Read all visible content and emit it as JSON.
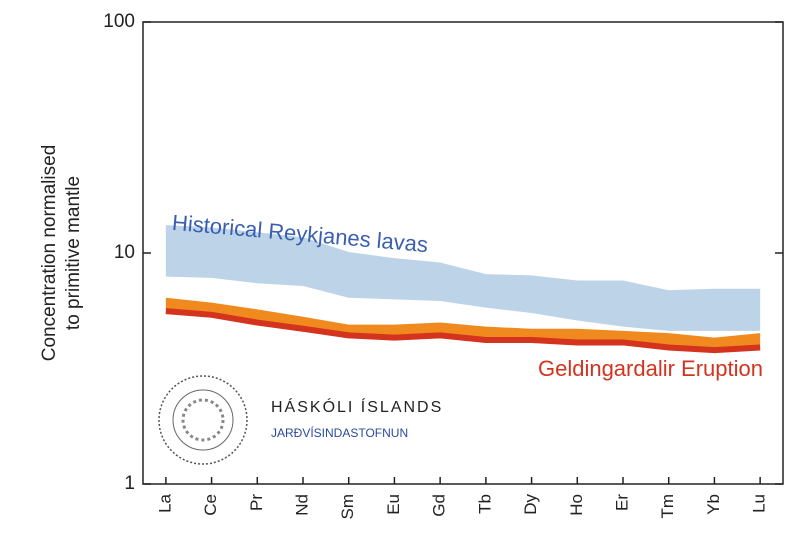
{
  "chart_data": {
    "type": "band",
    "y_label_lines": [
      "Concentration normalised",
      "to primitive mantle"
    ],
    "categories": [
      "La",
      "Ce",
      "Pr",
      "Nd",
      "Sm",
      "Eu",
      "Gd",
      "Tb",
      "Dy",
      "Ho",
      "Er",
      "Tm",
      "Yb",
      "Lu"
    ],
    "bands": [
      {
        "name": "Historical Reykjanes lavas",
        "color": "#bcd3e8",
        "label_color": "#3a5fb0",
        "upper": [
          13.2,
          12.9,
          12.3,
          11.7,
          10.1,
          9.5,
          9.1,
          8.1,
          8.0,
          7.6,
          7.6,
          6.9,
          7.0,
          7.0
        ],
        "lower": [
          7.9,
          7.8,
          7.4,
          7.2,
          6.4,
          6.3,
          6.2,
          5.8,
          5.5,
          5.1,
          4.8,
          4.6,
          4.6,
          4.6
        ]
      },
      {
        "name": "Geldingardalir Eruption",
        "color": "#f08a1e",
        "line_color": "#d4331e",
        "label_color": "#d4331e",
        "upper": [
          6.4,
          6.1,
          5.7,
          5.3,
          4.9,
          4.9,
          5.0,
          4.8,
          4.7,
          4.7,
          4.6,
          4.5,
          4.3,
          4.5
        ],
        "lower": [
          5.6,
          5.4,
          5.0,
          4.7,
          4.4,
          4.3,
          4.4,
          4.2,
          4.2,
          4.1,
          4.1,
          3.9,
          3.8,
          3.9
        ]
      }
    ],
    "ylim": [
      1,
      100
    ],
    "yticks": [
      1,
      10,
      100
    ],
    "log_y": true,
    "logo": {
      "name": "HÁSKÓLI ÍSLANDS",
      "unit": "JARÐVÍSINDASTOFNUN"
    }
  }
}
